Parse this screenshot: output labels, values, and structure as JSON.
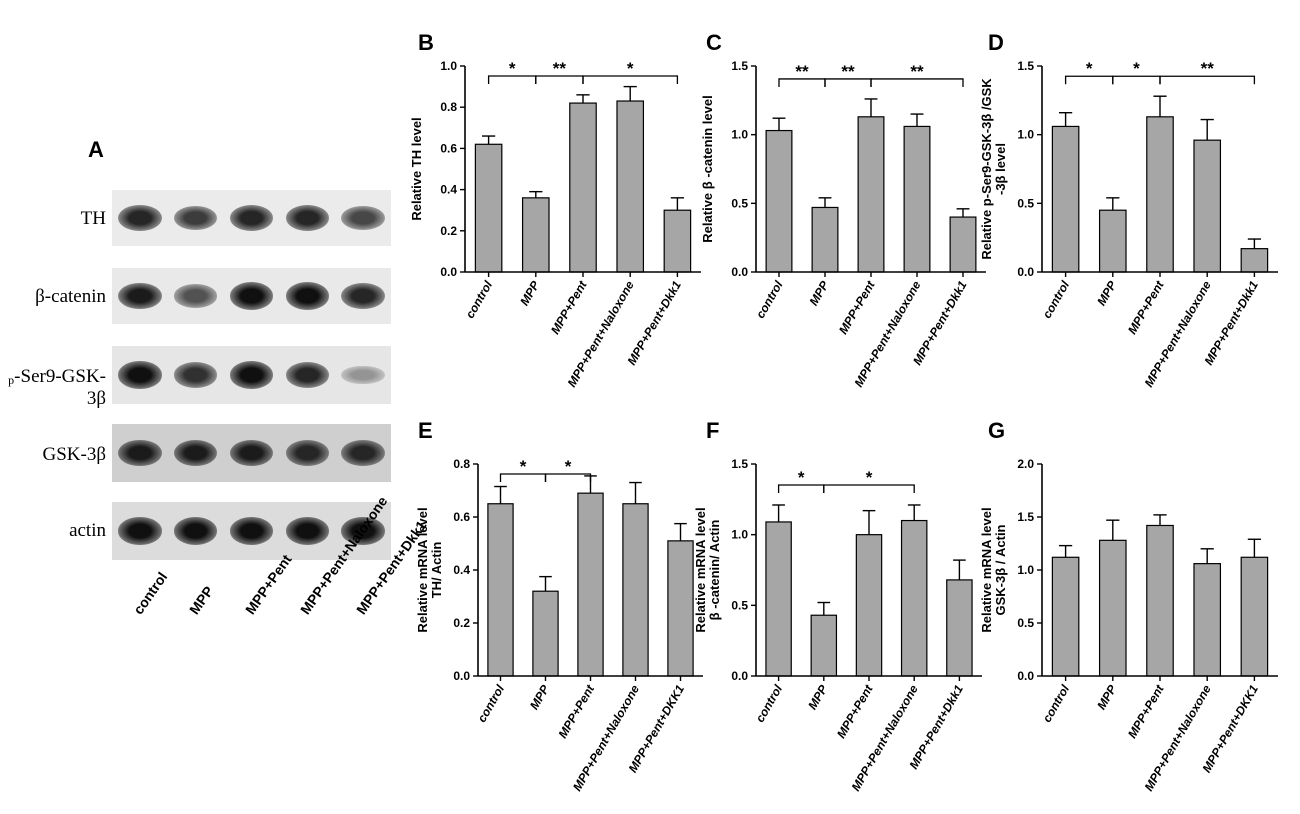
{
  "western_blot": {
    "panel_letter": "A",
    "proteins": [
      "TH",
      "β-catenin",
      "p-Ser9-GSK-3β",
      "GSK-3β",
      "actin"
    ],
    "lanes": [
      "control",
      "MPP",
      "MPP+Pent",
      "MPP+Pent+Naloxone",
      "MPP+Pent+Dkk1"
    ],
    "band_intensity": [
      [
        0.85,
        0.75,
        0.85,
        0.85,
        0.7
      ],
      [
        0.9,
        0.65,
        0.95,
        0.95,
        0.85
      ],
      [
        0.95,
        0.8,
        0.95,
        0.85,
        0.35
      ],
      [
        0.9,
        0.9,
        0.9,
        0.85,
        0.85
      ],
      [
        0.95,
        0.95,
        0.95,
        0.95,
        0.95
      ]
    ]
  },
  "chart_data": [
    {
      "type": "bar",
      "letter": "B",
      "categories": [
        "control",
        "MPP",
        "MPP+Pent",
        "MPP+Pent+Naloxone",
        "MPP+Pent+Dkk1"
      ],
      "values": [
        0.62,
        0.36,
        0.82,
        0.83,
        0.3
      ],
      "errors": [
        0.04,
        0.03,
        0.04,
        0.07,
        0.06
      ],
      "ylabel_lines": [
        "Relative TH level"
      ],
      "ylim": [
        0,
        1.0
      ],
      "yticks": [
        "0.0",
        "0.2",
        "0.4",
        "0.6",
        "0.8",
        "1.0"
      ],
      "significance": [
        {
          "from": 0,
          "to": 1,
          "label": "*"
        },
        {
          "from": 1,
          "to": 2,
          "label": "**"
        },
        {
          "from": 2,
          "to": 4,
          "label": "*"
        }
      ],
      "bar_color": "#a6a6a6"
    },
    {
      "type": "bar",
      "letter": "C",
      "categories": [
        "control",
        "MPP",
        "MPP+Pent",
        "MPP+Pent+Naloxone",
        "MPP+Pent+Dkk1"
      ],
      "values": [
        1.03,
        0.47,
        1.13,
        1.06,
        0.4
      ],
      "errors": [
        0.09,
        0.07,
        0.13,
        0.09,
        0.06
      ],
      "ylabel_lines": [
        "Relative β -catenin level"
      ],
      "ylim": [
        0,
        1.5
      ],
      "yticks": [
        "0.0",
        "0.5",
        "1.0",
        "1.5"
      ],
      "significance": [
        {
          "from": 0,
          "to": 1,
          "label": "**"
        },
        {
          "from": 1,
          "to": 2,
          "label": "**"
        },
        {
          "from": 2,
          "to": 4,
          "label": "**"
        }
      ],
      "bar_color": "#a6a6a6"
    },
    {
      "type": "bar",
      "letter": "D",
      "categories": [
        "control",
        "MPP",
        "MPP+Pent",
        "MPP+Pent+Naloxone",
        "MPP+Pent+Dkk1"
      ],
      "values": [
        1.06,
        0.45,
        1.13,
        0.96,
        0.17
      ],
      "errors": [
        0.1,
        0.09,
        0.15,
        0.15,
        0.07
      ],
      "ylabel_lines": [
        "Relative p-Ser9-GSK-3β /GSK",
        "-3β level"
      ],
      "ylim": [
        0,
        1.5
      ],
      "yticks": [
        "0.0",
        "0.5",
        "1.0",
        "1.5"
      ],
      "significance": [
        {
          "from": 0,
          "to": 1,
          "label": "*"
        },
        {
          "from": 1,
          "to": 2,
          "label": "*"
        },
        {
          "from": 2,
          "to": 4,
          "label": "**"
        }
      ],
      "bar_color": "#a6a6a6"
    },
    {
      "type": "bar",
      "letter": "E",
      "categories": [
        "control",
        "MPP",
        "MPP+Pent",
        "MPP+Pent+Naloxone",
        "MPP+Pent+DKK1"
      ],
      "values": [
        0.65,
        0.32,
        0.69,
        0.65,
        0.51
      ],
      "errors": [
        0.065,
        0.055,
        0.065,
        0.08,
        0.065
      ],
      "ylabel_lines": [
        "Relative mRNA level",
        "TH/ Actin"
      ],
      "ylim": [
        0,
        0.8
      ],
      "yticks": [
        "0.0",
        "0.2",
        "0.4",
        "0.6",
        "0.8"
      ],
      "significance": [
        {
          "from": 0,
          "to": 1,
          "label": "*"
        },
        {
          "from": 1,
          "to": 2,
          "label": "*"
        }
      ],
      "bar_color": "#a6a6a6"
    },
    {
      "type": "bar",
      "letter": "F",
      "categories": [
        "control",
        "MPP",
        "MPP+Pent",
        "MPP+Pent+Naloxone",
        "MPP+Pent+Dkk1"
      ],
      "values": [
        1.09,
        0.43,
        1.0,
        1.1,
        0.68
      ],
      "errors": [
        0.12,
        0.09,
        0.17,
        0.11,
        0.14
      ],
      "ylabel_lines": [
        "Relative mRNA level",
        "β -catenin/ Actin"
      ],
      "ylim": [
        0,
        1.5
      ],
      "yticks": [
        "0.0",
        "0.5",
        "1.0",
        "1.5"
      ],
      "significance": [
        {
          "from": 0,
          "to": 1,
          "label": "*"
        },
        {
          "from": 1,
          "to": 3,
          "label": "*"
        }
      ],
      "bar_color": "#a6a6a6"
    },
    {
      "type": "bar",
      "letter": "G",
      "categories": [
        "control",
        "MPP",
        "MPP+Pent",
        "MPP+Pent+Naloxone",
        "MPP+Pent+DKK1"
      ],
      "values": [
        1.12,
        1.28,
        1.42,
        1.06,
        1.12
      ],
      "errors": [
        0.11,
        0.19,
        0.1,
        0.14,
        0.17
      ],
      "ylabel_lines": [
        "Relative mRNA level",
        "GSK-3β / Actin"
      ],
      "ylim": [
        0,
        2.0
      ],
      "yticks": [
        "0.0",
        "0.5",
        "1.0",
        "1.5",
        "2.0"
      ],
      "significance": [],
      "bar_color": "#a6a6a6"
    }
  ]
}
